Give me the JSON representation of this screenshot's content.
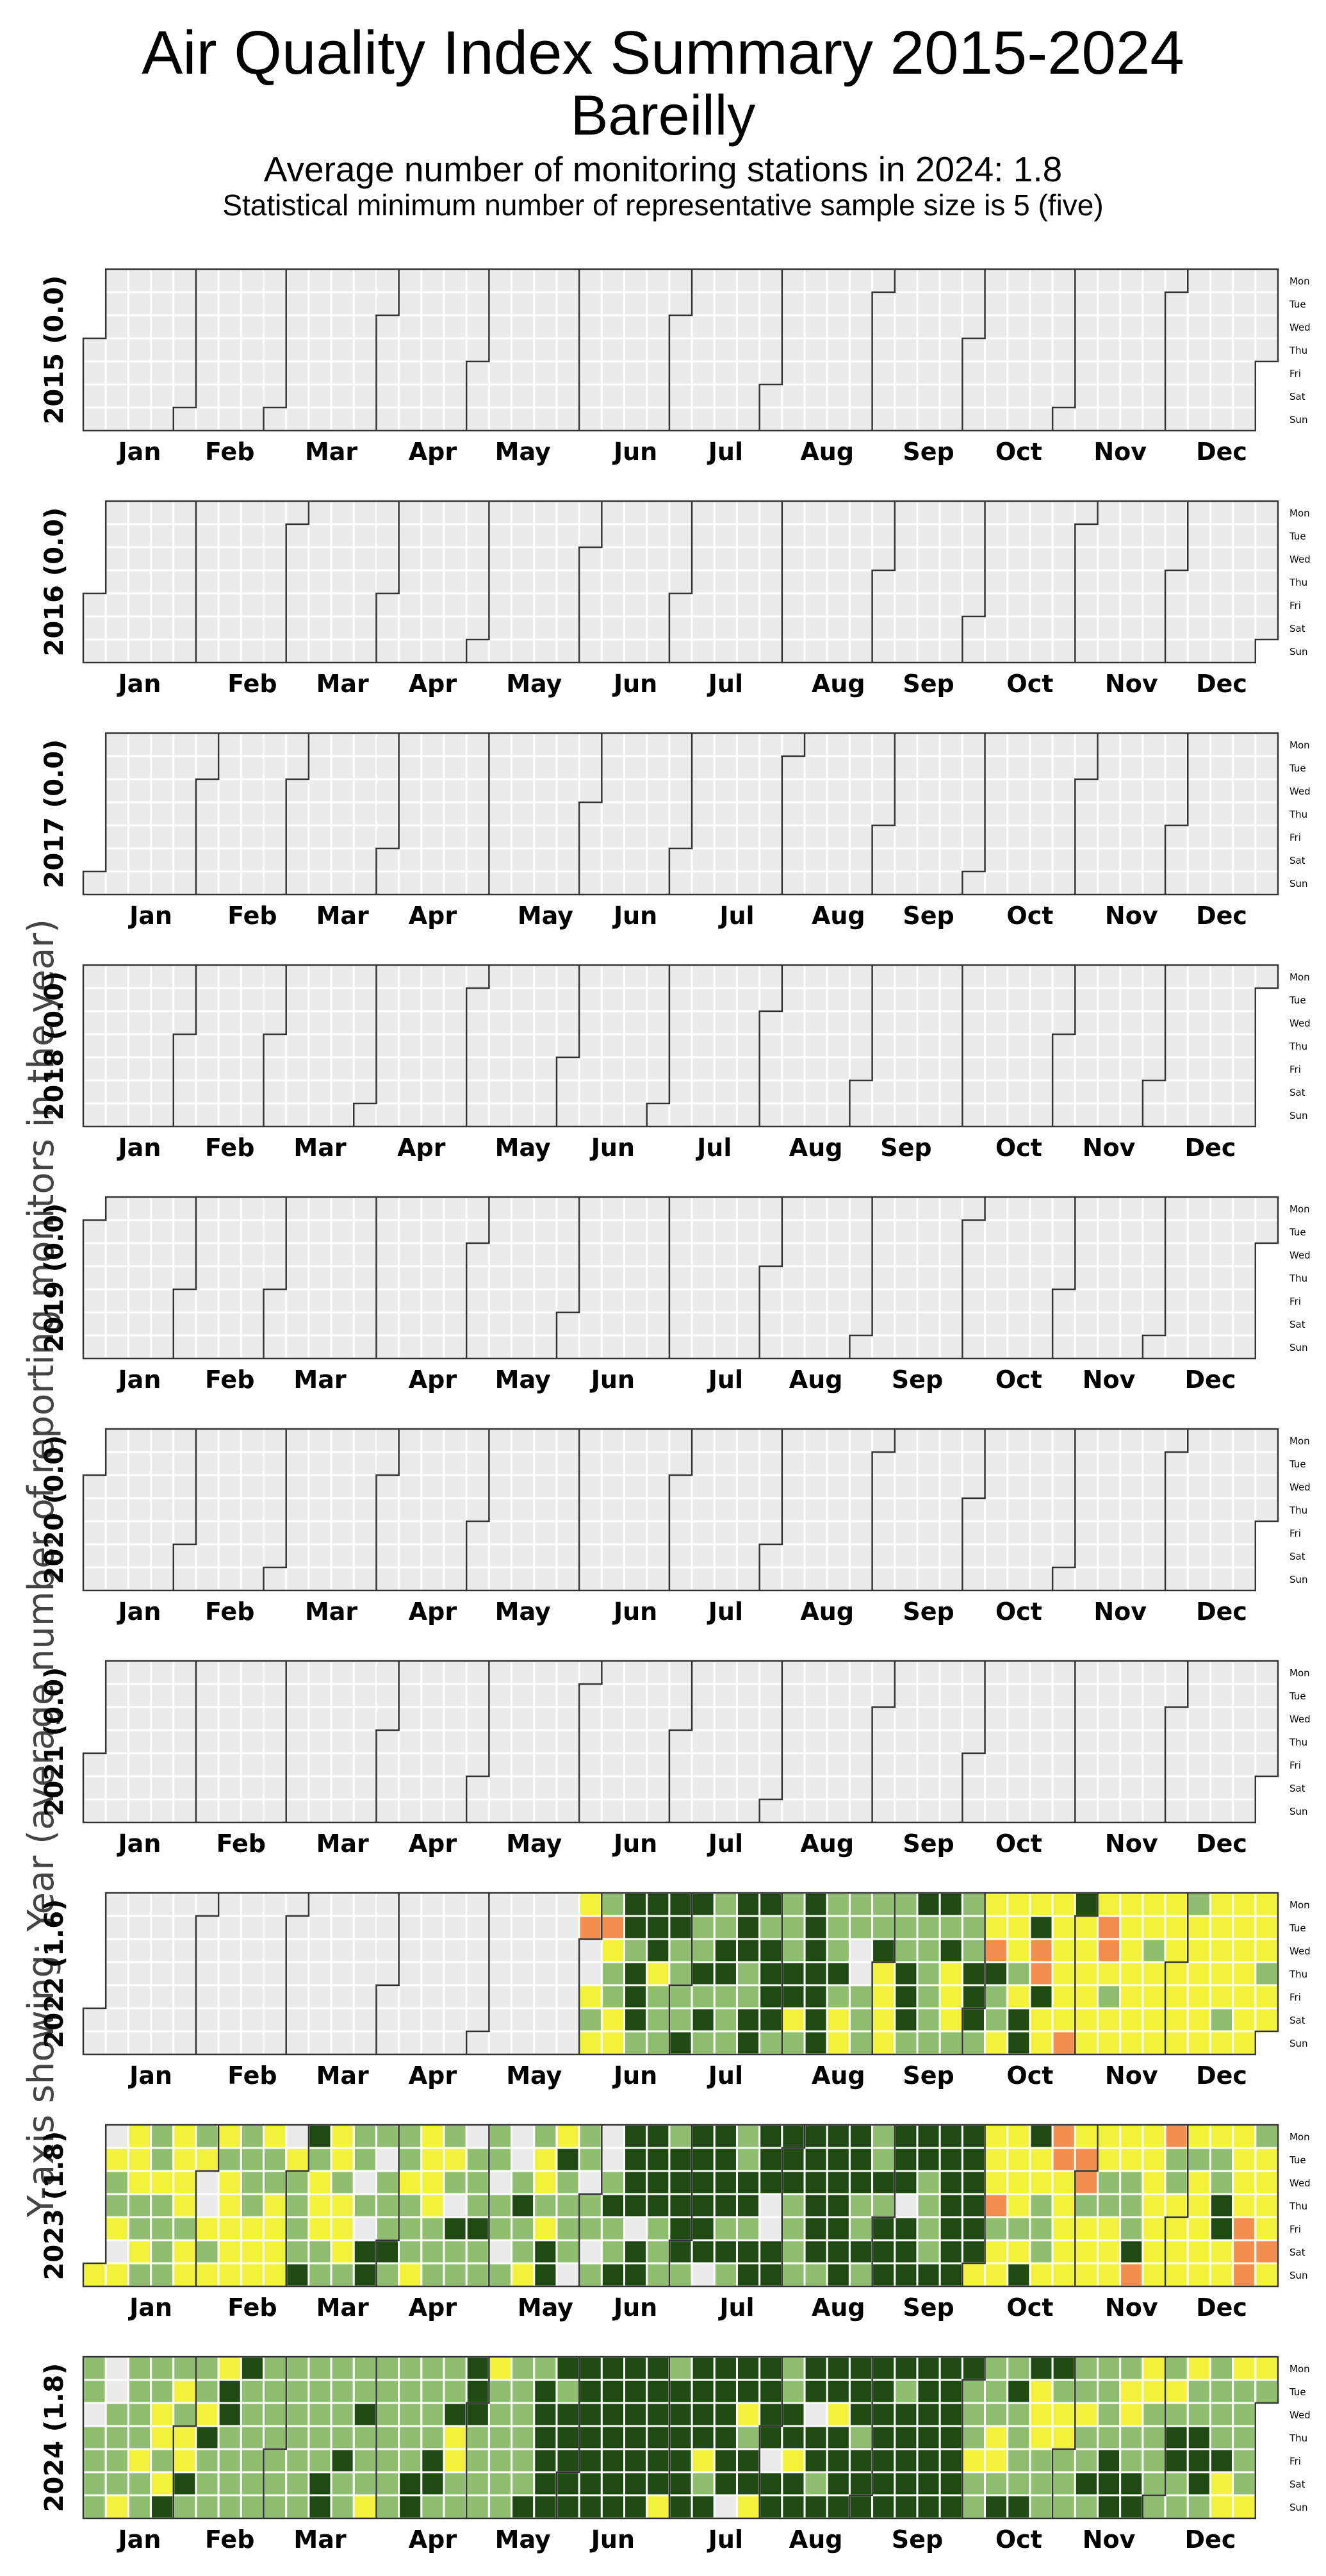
{
  "header": {
    "title": "Air Quality Index Summary 2015-2024",
    "city": "Bareilly",
    "subtitle": "Average number of monitoring stations in 2024: 1.8",
    "note": "Statistical minimum number of representative sample size is 5 (five)"
  },
  "y_axis_label": "Y-axis showing: Year (average number of reporting monitors in the year)",
  "colors": {
    "no_data": "#ebebeb",
    "good": "#1f4a12",
    "satisfactory": "#8fbf6e",
    "moderate": "#f2f23a",
    "poor": "#f28e4e",
    "very_poor": "#d73027",
    "cell_border": "#ffffff",
    "month_border": "#333333"
  },
  "chart_data": {
    "type": "heatmap",
    "layout": "calendar (week columns x weekday rows)",
    "weekday_labels": [
      "Mon",
      "Tue",
      "Wed",
      "Thu",
      "Fri",
      "Sat",
      "Sun"
    ],
    "month_labels": [
      "Jan",
      "Feb",
      "Mar",
      "Apr",
      "May",
      "Jun",
      "Jul",
      "Aug",
      "Sep",
      "Oct",
      "Nov",
      "Dec"
    ],
    "category_codes": {
      "0": "no data",
      "1": "good",
      "2": "satisfactory",
      "3": "moderate",
      "4": "poor"
    },
    "years": [
      {
        "year": 2015,
        "label": "2015 (0.0)",
        "ranges": []
      },
      {
        "year": 2016,
        "label": "2016 (0.0)",
        "ranges": []
      },
      {
        "year": 2017,
        "label": "2017 (0.0)",
        "ranges": []
      },
      {
        "year": 2018,
        "label": "2018 (0.0)",
        "ranges": []
      },
      {
        "year": 2019,
        "label": "2019 (0.0)",
        "ranges": []
      },
      {
        "year": 2020,
        "label": "2020 (0.0)",
        "ranges": []
      },
      {
        "year": 2021,
        "label": "2021 (0.0)",
        "ranges": []
      },
      {
        "year": 2022,
        "label": "2022 (1.6)",
        "ranges": [
          {
            "from": "2022-05-30",
            "to": "2022-06-12",
            "pattern": [
              3,
              3,
              4,
              2,
              3,
              4,
              3,
              3,
              3,
              0,
              2,
              3,
              2,
              3
            ]
          },
          {
            "from": "2022-06-13",
            "to": "2022-06-30",
            "pattern": [
              3,
              2,
              2,
              1,
              2,
              1,
              3,
              2,
              2,
              0,
              1,
              1,
              2,
              2,
              1,
              1,
              2,
              1
            ]
          },
          {
            "from": "2022-07-01",
            "to": "2022-07-31",
            "pattern": [
              1,
              2,
              1,
              1,
              1,
              2,
              1,
              1,
              2,
              1,
              1,
              1,
              1,
              2,
              1,
              1,
              1,
              2,
              1,
              1,
              1
            ]
          },
          {
            "from": "2022-08-01",
            "to": "2022-08-31",
            "pattern": [
              2,
              1,
              1,
              2,
              2,
              1,
              2,
              0,
              2,
              1,
              3,
              2,
              1,
              1,
              2,
              2,
              3,
              1,
              2,
              2
            ]
          },
          {
            "from": "2022-09-01",
            "to": "2022-09-30",
            "pattern": [
              2,
              2,
              1,
              3,
              2,
              1,
              2,
              3,
              2,
              2,
              1,
              3,
              2,
              1,
              2
            ]
          },
          {
            "from": "2022-10-01",
            "to": "2022-10-31",
            "pattern": [
              3,
              1,
              3,
              4,
              3,
              2,
              3,
              1,
              3,
              3,
              2,
              3,
              3,
              4,
              3,
              1
            ]
          },
          {
            "from": "2022-11-01",
            "to": "2022-12-31",
            "pattern": [
              3,
              3,
              2,
              3,
              3,
              3,
              4,
              3,
              3,
              2,
              3,
              3,
              3,
              3,
              2,
              3,
              3,
              4,
              3,
              3,
              3,
              2,
              3
            ]
          }
        ]
      },
      {
        "year": 2023,
        "label": "2023 (1.8)",
        "ranges": [
          {
            "from": "2023-01-01",
            "to": "2023-02-28",
            "pattern": [
              3,
              3,
              2,
              3,
              0,
              3,
              2,
              3,
              3,
              2,
              2,
              3,
              2,
              3,
              3,
              2
            ]
          },
          {
            "from": "2023-03-01",
            "to": "2023-04-30",
            "pattern": [
              2,
              3,
              2,
              2,
              3,
              2,
              0,
              2,
              3,
              2,
              1,
              2,
              3,
              2,
              2,
              1,
              2,
              3,
              0,
              2
            ]
          },
          {
            "from": "2023-05-01",
            "to": "2023-06-10",
            "pattern": [
              2,
              3,
              2,
              0,
              2,
              1,
              3,
              2,
              0,
              2,
              2,
              1,
              2
            ]
          },
          {
            "from": "2023-06-11",
            "to": "2023-09-30",
            "pattern": [
              1,
              1,
              2,
              1,
              1,
              1,
              2,
              1,
              1,
              1,
              1,
              2,
              1,
              1,
              2,
              1,
              1,
              0,
              1,
              1,
              2,
              1
            ]
          },
          {
            "from": "2023-10-01",
            "to": "2023-12-31",
            "pattern": [
              3,
              3,
              2,
              3,
              4,
              3,
              3,
              2,
              3,
              3,
              3,
              2,
              3,
              4,
              3,
              1,
              3,
              2,
              3,
              3
            ]
          }
        ]
      },
      {
        "year": 2024,
        "label": "2024 (1.8)",
        "ranges": [
          {
            "from": "2024-01-01",
            "to": "2024-03-31",
            "pattern": [
              2,
              2,
              2,
              3,
              2,
              1,
              2,
              2,
              0,
              2,
              2,
              3,
              2,
              2,
              2,
              1,
              2,
              3,
              2,
              2,
              2
            ]
          },
          {
            "from": "2024-04-01",
            "to": "2024-05-20",
            "pattern": [
              2,
              2,
              1,
              2,
              2,
              2,
              3,
              2,
              2,
              1,
              2,
              2,
              2,
              1
            ]
          },
          {
            "from": "2024-05-21",
            "to": "2024-09-30",
            "pattern": [
              1,
              1,
              1,
              2,
              1,
              1,
              1,
              1,
              3,
              1,
              1,
              1,
              2,
              1,
              1,
              1,
              1,
              1,
              0,
              1,
              3,
              1,
              1
            ]
          },
          {
            "from": "2024-10-01",
            "to": "2024-12-31",
            "pattern": [
              2,
              3,
              2,
              1,
              2,
              3,
              2,
              2,
              1,
              2,
              3,
              2,
              1,
              2,
              2,
              3,
              2,
              1,
              2,
              2
            ]
          }
        ]
      }
    ]
  }
}
